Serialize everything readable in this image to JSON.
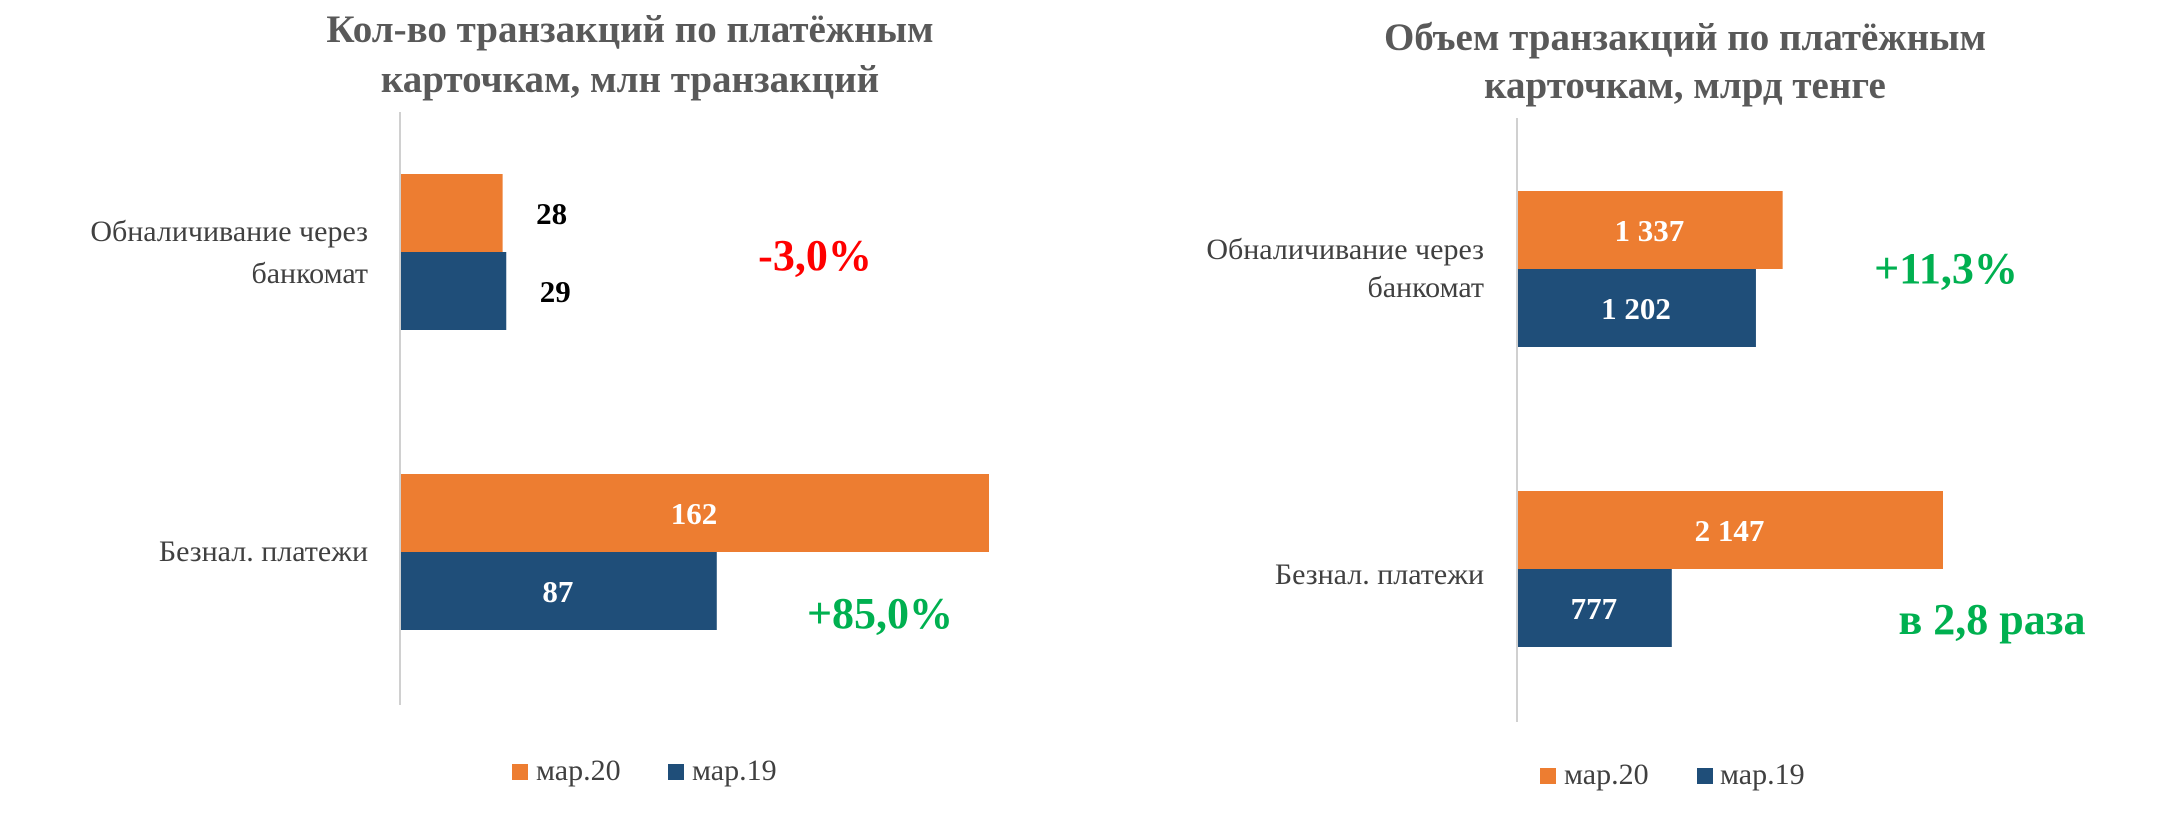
{
  "chart_data": [
    {
      "type": "bar",
      "orientation": "horizontal",
      "title_lines": [
        "Кол-во транзакций по платёжным",
        "карточкам, млн транзакций"
      ],
      "categories": [
        "Обналичивание через банкомат",
        "Безнал. платежи"
      ],
      "category_label_lines": [
        [
          "Обналичивание через",
          "банкомат"
        ],
        [
          "Безнал. платежи"
        ]
      ],
      "series": [
        {
          "name": "мар.20",
          "values": [
            28,
            162
          ],
          "labels": [
            "28",
            "162"
          ]
        },
        {
          "name": "мар.19",
          "values": [
            29,
            87
          ],
          "labels": [
            "29",
            "87"
          ]
        }
      ],
      "annotations": [
        "-3,0%",
        "+85,0%"
      ],
      "annotation_colors": [
        "#ff0000",
        "#00b050"
      ],
      "grid": false,
      "legend": "bottom"
    },
    {
      "type": "bar",
      "orientation": "horizontal",
      "title_lines": [
        "Объем транзакций по платёжным",
        "карточкам, млрд тенге"
      ],
      "categories": [
        "Обналичивание через банкомат",
        "Безнал. платежи"
      ],
      "category_label_lines": [
        [
          "Обналичивание через",
          "банкомат"
        ],
        [
          "Безнал. платежи"
        ]
      ],
      "series": [
        {
          "name": "мар.20",
          "values": [
            1337,
            2147
          ],
          "labels": [
            "1 337",
            "2 147"
          ]
        },
        {
          "name": "мар.19",
          "values": [
            1202,
            777
          ],
          "labels": [
            "1 202",
            "777"
          ]
        }
      ],
      "annotations": [
        "+11,3%",
        "в 2,8 раза"
      ],
      "annotation_colors": [
        "#00b050",
        "#00b050"
      ],
      "grid": false,
      "legend": "bottom"
    }
  ],
  "colors": {
    "series": [
      "#ed7d31",
      "#1f4e79"
    ],
    "title": "#595959",
    "axis_text": "#404040",
    "axis_line": "#d0d0d0",
    "label_dark": "#000000",
    "label_light": "#ffffff"
  }
}
